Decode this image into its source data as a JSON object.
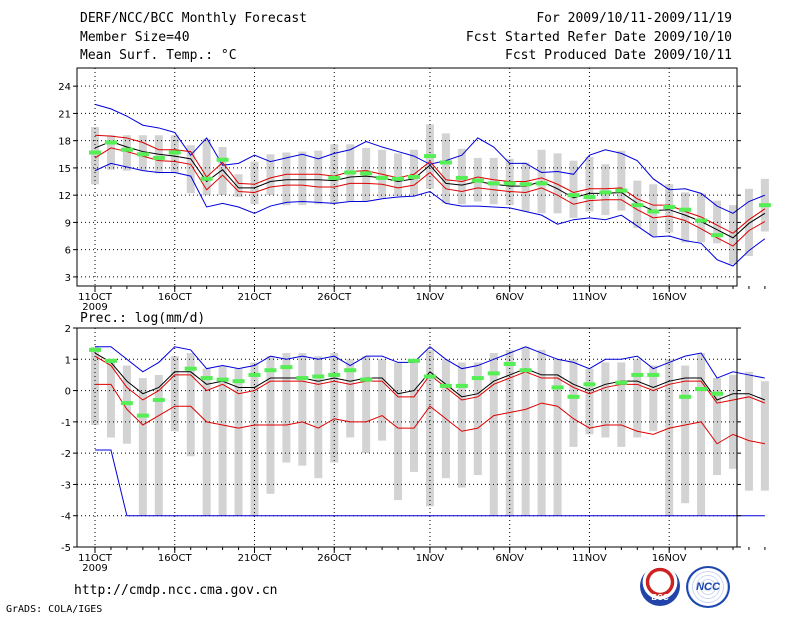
{
  "header": {
    "title": "DERF/NCC/BCC Monthly Forecast",
    "member_size": "Member Size=40",
    "variable": "Mean Surf. Temp.: °C",
    "forecast_period": "For 2009/10/11-2009/11/19",
    "started_date": "Fcst Started Refer Date 2009/10/10",
    "produced_date": "Fcst Produced Date 2009/10/11"
  },
  "footer": {
    "url": "http://cmdp.ncc.cma.gov.cn",
    "credit": "GrADS: COLA/IGES",
    "logo1": "BCC",
    "logo2": "NCC"
  },
  "colors": {
    "upper": "#0000dd",
    "median": "#000000",
    "red": "#dd0000",
    "obs": "#55ee55",
    "box": "#d3d3d3"
  },
  "chart_data": [
    {
      "type": "line",
      "title": "Mean Surf. Temp.: °C",
      "ylim": [
        2,
        26
      ],
      "yticks": [
        3,
        6,
        9,
        12,
        15,
        18,
        21,
        24
      ],
      "x_ticks": [
        {
          "day": 0,
          "label": "11OCT"
        },
        {
          "day": 5,
          "label": "16OCT"
        },
        {
          "day": 10,
          "label": "21OCT"
        },
        {
          "day": 15,
          "label": "26OCT"
        },
        {
          "day": 21,
          "label": "1NOV"
        },
        {
          "day": 26,
          "label": "6NOV"
        },
        {
          "day": 31,
          "label": "11NOV"
        },
        {
          "day": 36,
          "label": "16NOV"
        }
      ],
      "year_label": "2009",
      "series": [
        {
          "name": "max",
          "values": [
            22,
            21.5,
            20.7,
            19.7,
            19.4,
            18.9,
            16.4,
            18.3,
            15.3,
            15.5,
            16.4,
            15.7,
            16.1,
            16.5,
            16,
            16.6,
            17,
            17.9,
            17.3,
            16.8,
            16.3,
            15.4,
            15.8,
            16.4,
            18.3,
            17.3,
            15.5,
            15.5,
            14.5,
            14.6,
            14.3,
            16.4,
            17,
            16.6,
            15.8,
            13.8,
            12.6,
            12.7,
            12.2,
            10.8,
            10,
            11.3,
            12
          ]
        },
        {
          "name": "red_upper",
          "values": [
            18.6,
            18.5,
            18.3,
            17.8,
            17,
            17,
            16.8,
            14,
            15.6,
            13.3,
            13.2,
            13.9,
            14.3,
            14.3,
            14.3,
            14.1,
            14.6,
            14.7,
            14.3,
            13.9,
            14.3,
            15.7,
            13.7,
            13.5,
            14,
            13.7,
            13.5,
            13.5,
            13.9,
            13.2,
            12.3,
            12.7,
            12.7,
            12.8,
            11.6,
            10.9,
            10.9,
            10.2,
            9.6,
            8.7,
            7.8,
            9.3,
            10.5
          ]
        },
        {
          "name": "median",
          "values": [
            17.2,
            17.9,
            17.3,
            16.8,
            16.5,
            16.3,
            16,
            13.5,
            14.8,
            12.8,
            12.8,
            13.5,
            13.7,
            13.7,
            13.7,
            13.6,
            14,
            14.1,
            13.9,
            13.5,
            13.8,
            15.3,
            13.3,
            13.1,
            13.5,
            13.2,
            13,
            13,
            13.5,
            12.7,
            11.7,
            12.2,
            12.2,
            12.3,
            11.1,
            10.3,
            10.4,
            9.8,
            9.1,
            8.2,
            7.3,
            8.9,
            10
          ]
        },
        {
          "name": "red_lower",
          "values": [
            16.1,
            17.2,
            16.8,
            16.3,
            15.8,
            15.7,
            15.4,
            12.6,
            14.2,
            12.4,
            12.3,
            12.9,
            13.1,
            13.1,
            12.9,
            12.9,
            13.3,
            13.3,
            13.2,
            12.8,
            13.1,
            14.5,
            12.7,
            12.4,
            12.8,
            12.6,
            12.4,
            12.3,
            12.8,
            12,
            11,
            11.4,
            11.5,
            11.5,
            10.4,
            9.5,
            9.7,
            9.2,
            8.3,
            7.3,
            6.4,
            8.1,
            9.1
          ]
        },
        {
          "name": "min",
          "values": [
            14.7,
            15.5,
            15.1,
            14.7,
            14.5,
            14.5,
            14.1,
            10.7,
            11.1,
            10.7,
            10,
            10.8,
            11.2,
            11.3,
            11.2,
            11.1,
            11.3,
            11.3,
            11.6,
            11.8,
            11.9,
            12.4,
            11.1,
            10.8,
            10.8,
            10.7,
            10.6,
            10.2,
            9.8,
            8.8,
            9.3,
            9.5,
            9.3,
            9.8,
            8.6,
            7.4,
            7.5,
            7,
            6.7,
            4.9,
            4.2,
            5.9,
            7.2
          ]
        },
        {
          "name": "observed",
          "values": [
            16.7,
            17.8,
            17,
            16.5,
            16.1,
            16.7,
            null,
            13.8,
            15.9,
            null,
            null,
            null,
            null,
            null,
            null,
            13.9,
            14.5,
            14.4,
            13.9,
            13.8,
            14,
            16.3,
            15.6,
            13.9,
            13.6,
            13.3,
            13.3,
            13.2,
            13.3,
            null,
            12,
            11.8,
            12.3,
            12.5,
            10.9,
            10.2,
            10.7,
            10.4,
            9.2,
            7.6,
            null,
            null,
            10.9
          ]
        }
      ],
      "boxes": [
        [
          13.2,
          19.5
        ],
        [
          14.8,
          18.6
        ],
        [
          14.7,
          18.6
        ],
        [
          14.7,
          18.6
        ],
        [
          14.4,
          18.6
        ],
        [
          14.4,
          18.6
        ],
        [
          12.2,
          17.5
        ],
        [
          12,
          18.2
        ],
        [
          12,
          17.3
        ],
        [
          11.8,
          14.3
        ],
        [
          11,
          15.7
        ],
        [
          12,
          16.5
        ],
        [
          10.9,
          16.7
        ],
        [
          10.9,
          16.8
        ],
        [
          11,
          16.9
        ],
        [
          11,
          17.6
        ],
        [
          11.3,
          17.6
        ],
        [
          11.3,
          17.2
        ],
        [
          11.7,
          17
        ],
        [
          11.9,
          16.6
        ],
        [
          12,
          17
        ],
        [
          12.7,
          19.8
        ],
        [
          11.1,
          18.8
        ],
        [
          11,
          17.1
        ],
        [
          11.3,
          16.1
        ],
        [
          11,
          16.1
        ],
        [
          10.9,
          16
        ],
        [
          10.2,
          15.6
        ],
        [
          10,
          17
        ],
        [
          10,
          16.6
        ],
        [
          9.5,
          15.8
        ],
        [
          10.2,
          16.2
        ],
        [
          9.8,
          15.4
        ],
        [
          10.3,
          16.9
        ],
        [
          8.4,
          13.6
        ],
        [
          7.5,
          13.2
        ],
        [
          7.9,
          13.2
        ],
        [
          6.8,
          12.3
        ],
        [
          6.8,
          12.2
        ],
        [
          6.7,
          11.4
        ],
        [
          4.4,
          10.9
        ],
        [
          5.3,
          12.7
        ],
        [
          8,
          13.8
        ]
      ]
    },
    {
      "type": "line",
      "title": "Prec.: log(mm/d)",
      "ylim": [
        -5,
        2
      ],
      "yticks": [
        -5,
        -4,
        -3,
        -2,
        -1,
        0,
        1,
        2
      ],
      "x_ticks": [
        {
          "day": 0,
          "label": "11OCT"
        },
        {
          "day": 5,
          "label": "16OCT"
        },
        {
          "day": 10,
          "label": "21OCT"
        },
        {
          "day": 15,
          "label": "26OCT"
        },
        {
          "day": 21,
          "label": "1NOV"
        },
        {
          "day": 26,
          "label": "6NOV"
        },
        {
          "day": 31,
          "label": "11NOV"
        },
        {
          "day": 36,
          "label": "16NOV"
        }
      ],
      "year_label": "2009",
      "series": [
        {
          "name": "max",
          "values": [
            1.4,
            1.4,
            1,
            0.6,
            0.9,
            1.4,
            1.3,
            0.7,
            0.8,
            0.7,
            0.8,
            1.1,
            1,
            1.1,
            1,
            1.1,
            0.8,
            1.1,
            1.1,
            0.9,
            0.9,
            1.4,
            1,
            0.7,
            0.8,
            1,
            1.2,
            1.4,
            1.2,
            1,
            0.9,
            0.7,
            1,
            1,
            1.1,
            0.7,
            0.9,
            1.1,
            1.2,
            0.4,
            0.6,
            0.5,
            0.4
          ]
        },
        {
          "name": "median",
          "values": [
            1.2,
            0.9,
            0.3,
            -0.1,
            0.1,
            0.6,
            0.6,
            0.2,
            0.3,
            0.1,
            0.1,
            0.4,
            0.4,
            0.4,
            0.3,
            0.4,
            0.3,
            0.4,
            0.4,
            -0.1,
            0,
            0.6,
            0.2,
            -0.2,
            -0.1,
            0.3,
            0.5,
            0.7,
            0.5,
            0.5,
            0.2,
            0,
            0.2,
            0.3,
            0.3,
            0.1,
            0.3,
            0.4,
            0.4,
            -0.3,
            -0.1,
            -0.1,
            -0.3
          ]
        },
        {
          "name": "red_upper",
          "values": [
            1.1,
            0.8,
            0.1,
            -0.3,
            0,
            0.5,
            0.5,
            0,
            0.2,
            -0.1,
            0,
            0.3,
            0.3,
            0.3,
            0.2,
            0.3,
            0.2,
            0.3,
            0.3,
            -0.2,
            -0.2,
            0.5,
            0.1,
            -0.3,
            -0.2,
            0.2,
            0.4,
            0.6,
            0.4,
            0.4,
            0.1,
            -0.1,
            0.1,
            0.2,
            0.2,
            0,
            0.2,
            0.3,
            0.3,
            -0.4,
            -0.3,
            -0.2,
            -0.4
          ]
        },
        {
          "name": "red_lower",
          "values": [
            0.2,
            0.2,
            -0.6,
            -1.1,
            -0.8,
            -0.5,
            -0.5,
            -1,
            -1.1,
            -1.2,
            -1.1,
            -1.1,
            -1.1,
            -1,
            -1.2,
            -0.9,
            -1,
            -1,
            -0.8,
            -1.2,
            -1.2,
            -0.5,
            -0.9,
            -1.3,
            -1.2,
            -0.8,
            -0.7,
            -0.6,
            -0.4,
            -0.5,
            -0.9,
            -1.2,
            -1.1,
            -1.1,
            -1.3,
            -1.4,
            -1.2,
            -1.1,
            -1,
            -1.7,
            -1.4,
            -1.6,
            -1.7
          ]
        },
        {
          "name": "min",
          "values": [
            -1.9,
            -1.9,
            -4,
            -4,
            -4,
            -4,
            -4,
            -4,
            -4,
            -4,
            -4,
            -4,
            -4,
            -4,
            -4,
            -4,
            -4,
            -4,
            -4,
            -4,
            -4,
            -4,
            -4,
            -4,
            -4,
            -4,
            -4,
            -4,
            -4,
            -4,
            -4,
            -4,
            -4,
            -4,
            -4,
            -4,
            -4,
            -4,
            -4,
            -4,
            -4,
            -4,
            -4
          ]
        },
        {
          "name": "observed",
          "values": [
            1.3,
            0.95,
            -0.4,
            -0.8,
            -0.3,
            null,
            0.7,
            0.4,
            0.35,
            0.3,
            0.5,
            0.65,
            0.75,
            0.4,
            0.45,
            0.5,
            0.65,
            0.35,
            null,
            null,
            0.95,
            0.45,
            0.15,
            0.15,
            0.4,
            0.55,
            0.85,
            0.65,
            null,
            0.1,
            -0.2,
            0.2,
            null,
            0.25,
            0.5,
            0.5,
            null,
            -0.2,
            0.05,
            -0.1,
            null,
            null,
            null
          ]
        }
      ],
      "boxes": [
        [
          -1.1,
          1.4
        ],
        [
          -1.5,
          1
        ],
        [
          -1.7,
          0.8
        ],
        [
          -4,
          0.4
        ],
        [
          -4,
          0.5
        ],
        [
          -1.3,
          1.1
        ],
        [
          -2.1,
          1.2
        ],
        [
          -4,
          0.7
        ],
        [
          -4,
          0.8
        ],
        [
          -4,
          0.7
        ],
        [
          -4,
          0.9
        ],
        [
          -3.3,
          1.1
        ],
        [
          -2.3,
          1.2
        ],
        [
          -2.4,
          1.2
        ],
        [
          -2.8,
          1.1
        ],
        [
          -2.3,
          1.2
        ],
        [
          -1.5,
          1
        ],
        [
          -2,
          1.1
        ],
        [
          -1.6,
          1
        ],
        [
          -3.5,
          0.9
        ],
        [
          -2.6,
          1
        ],
        [
          -3.7,
          1.3
        ],
        [
          -2.8,
          1
        ],
        [
          -3.1,
          0.9
        ],
        [
          -2.7,
          0.9
        ],
        [
          -4,
          1.2
        ],
        [
          -4,
          1.3
        ],
        [
          -4,
          1.4
        ],
        [
          -4,
          1.3
        ],
        [
          -4,
          1
        ],
        [
          -1.8,
          1
        ],
        [
          -1.4,
          0.7
        ],
        [
          -1.5,
          0.9
        ],
        [
          -1.8,
          0.9
        ],
        [
          -1.5,
          1
        ],
        [
          -1.3,
          0.8
        ],
        [
          -4,
          1
        ],
        [
          -3.6,
          0.8
        ],
        [
          -4,
          1.2
        ],
        [
          -2.7,
          0.4
        ],
        [
          -2.5,
          0.5
        ],
        [
          -3.2,
          0.6
        ],
        [
          -3.2,
          0.3
        ]
      ]
    }
  ]
}
